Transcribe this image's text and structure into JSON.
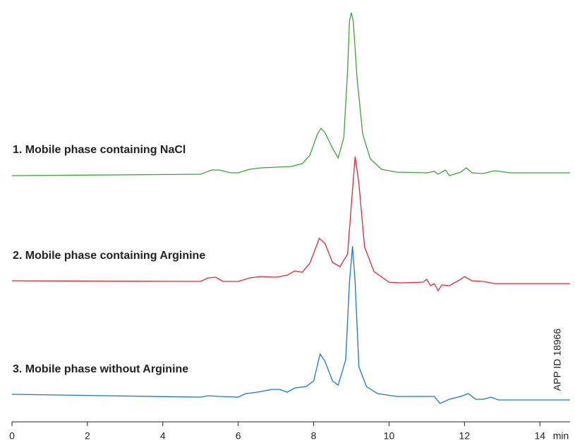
{
  "chart_data": {
    "type": "line",
    "x_label": "min",
    "annotation": "APP ID 18966",
    "xlim": [
      0,
      14.8
    ],
    "xticks": [
      0,
      2,
      4,
      6,
      8,
      10,
      12,
      14
    ],
    "ylim": [
      0,
      600
    ],
    "series": [
      {
        "name": "1. Mobile phase containing NaCl",
        "color": "#3ea33b",
        "x": [
          0,
          5,
          5.3,
          5.5,
          5.8,
          6.0,
          6.3,
          6.6,
          7.0,
          7.4,
          7.7,
          7.9,
          8.1,
          8.2,
          8.3,
          8.5,
          8.65,
          8.8,
          8.9,
          8.95,
          9.0,
          9.05,
          9.15,
          9.3,
          9.5,
          9.8,
          10.2,
          11.0,
          11.2,
          11.3,
          11.5,
          11.6,
          11.9,
          12.05,
          12.2,
          12.5,
          12.8,
          13.2,
          14.8
        ],
        "values": [
          349,
          351,
          357,
          357,
          353,
          353,
          358,
          360,
          361,
          362,
          366,
          378,
          408,
          416,
          410,
          388,
          374,
          403,
          498,
          568,
          580,
          568,
          488,
          408,
          373,
          358,
          354,
          353,
          355,
          351,
          357,
          349,
          354,
          360,
          353,
          352,
          356,
          353,
          353
        ]
      },
      {
        "name": "2. Mobile phase containing Arginine",
        "color": "#e0283a",
        "x": [
          0,
          5.0,
          5.2,
          5.4,
          5.6,
          6.0,
          6.3,
          6.6,
          7.0,
          7.3,
          7.5,
          7.7,
          7.9,
          8.15,
          8.3,
          8.5,
          8.7,
          8.9,
          9.0,
          9.1,
          9.2,
          9.35,
          9.6,
          10.0,
          10.3,
          10.9,
          11.0,
          11.1,
          11.2,
          11.3,
          11.4,
          11.6,
          11.9,
          12.0,
          12.2,
          12.5,
          12.8,
          14.8
        ],
        "values": [
          200,
          199,
          204,
          205,
          199,
          199,
          204,
          206,
          205,
          208,
          214,
          212,
          225,
          260,
          253,
          226,
          220,
          238,
          308,
          376,
          338,
          248,
          213,
          198,
          197,
          198,
          202,
          193,
          196,
          186,
          194,
          193,
          202,
          206,
          200,
          199,
          196,
          196
        ]
      },
      {
        "name": "3. Mobile phase without Arginine",
        "color": "#1a78bd",
        "x": [
          0,
          5.0,
          5.2,
          5.5,
          6.0,
          6.2,
          6.5,
          6.9,
          7.1,
          7.3,
          7.5,
          7.8,
          8.0,
          8.17,
          8.3,
          8.5,
          8.65,
          8.85,
          8.95,
          9.03,
          9.1,
          9.2,
          9.4,
          9.7,
          10.2,
          11.2,
          11.35,
          11.6,
          11.9,
          12.1,
          12.3,
          12.5,
          12.7,
          12.9,
          14.8
        ],
        "values": [
          39,
          35,
          37,
          36,
          35,
          40,
          42,
          46,
          46,
          42,
          48,
          50,
          58,
          96,
          86,
          58,
          52,
          88,
          198,
          249,
          198,
          78,
          50,
          40,
          36,
          36,
          26,
          32,
          36,
          40,
          32,
          32,
          35,
          31,
          31
        ]
      }
    ]
  }
}
